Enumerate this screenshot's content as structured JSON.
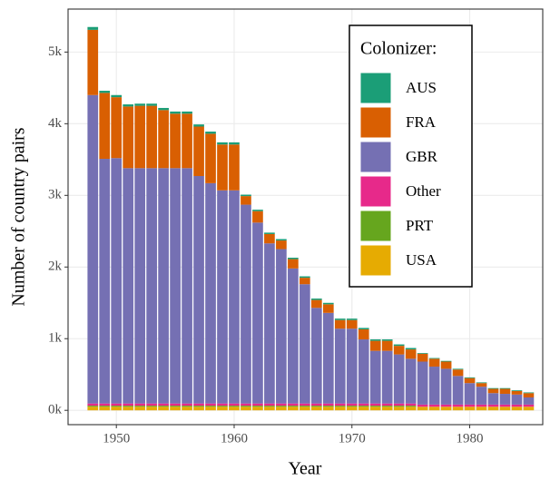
{
  "chart_data": {
    "type": "stacked-bar",
    "x_label": "Year",
    "y_label": "Number of country pairs",
    "legend_title": "Colonizer:",
    "x": [
      1948,
      1949,
      1950,
      1951,
      1952,
      1953,
      1954,
      1955,
      1956,
      1957,
      1958,
      1959,
      1960,
      1961,
      1962,
      1963,
      1964,
      1965,
      1966,
      1967,
      1968,
      1969,
      1970,
      1971,
      1972,
      1973,
      1974,
      1975,
      1976,
      1977,
      1978,
      1979,
      1980,
      1981,
      1982,
      1983,
      1984,
      1985
    ],
    "series": [
      {
        "name": "AUS",
        "color": "#1b9e77",
        "values": [
          40,
          30,
          30,
          30,
          30,
          30,
          30,
          30,
          30,
          30,
          30,
          30,
          30,
          20,
          20,
          20,
          20,
          20,
          20,
          20,
          20,
          20,
          20,
          20,
          20,
          20,
          20,
          20,
          10,
          10,
          10,
          10,
          10,
          10,
          10,
          10,
          10,
          10
        ]
      },
      {
        "name": "FRA",
        "color": "#d95f02",
        "values": [
          910,
          920,
          850,
          860,
          870,
          870,
          810,
          760,
          760,
          690,
          690,
          640,
          640,
          120,
          160,
          130,
          120,
          130,
          90,
          110,
          120,
          120,
          120,
          140,
          140,
          140,
          120,
          130,
          110,
          110,
          100,
          90,
          70,
          50,
          60,
          70,
          50,
          60
        ]
      },
      {
        "name": "GBR",
        "color": "#7570b3",
        "values": [
          4305,
          3415,
          3425,
          3285,
          3285,
          3285,
          3285,
          3285,
          3285,
          3175,
          3075,
          2975,
          2975,
          2775,
          2525,
          2235,
          2155,
          1885,
          1665,
          1335,
          1265,
          1045,
          1045,
          895,
          735,
          735,
          685,
          625,
          600,
          530,
          500,
          400,
          300,
          250,
          160,
          150,
          140,
          100
        ]
      },
      {
        "name": "Other",
        "color": "#e7298a",
        "values": [
          30,
          30,
          30,
          30,
          30,
          30,
          30,
          30,
          30,
          30,
          30,
          30,
          30,
          30,
          30,
          30,
          30,
          30,
          30,
          30,
          30,
          30,
          30,
          30,
          30,
          30,
          30,
          30,
          30,
          30,
          30,
          30,
          30,
          30,
          30,
          30,
          30,
          30
        ]
      },
      {
        "name": "PRT",
        "color": "#66a61e",
        "values": [
          15,
          15,
          15,
          15,
          15,
          15,
          15,
          15,
          15,
          15,
          15,
          15,
          15,
          15,
          15,
          15,
          15,
          15,
          15,
          15,
          15,
          15,
          15,
          15,
          15,
          15,
          15,
          15,
          0,
          0,
          0,
          0,
          0,
          0,
          0,
          0,
          0,
          0
        ]
      },
      {
        "name": "USA",
        "color": "#e6ab02",
        "values": [
          50,
          50,
          50,
          50,
          50,
          50,
          50,
          50,
          50,
          50,
          50,
          50,
          50,
          50,
          50,
          50,
          50,
          50,
          50,
          50,
          50,
          50,
          50,
          50,
          50,
          50,
          50,
          50,
          50,
          50,
          50,
          50,
          50,
          50,
          50,
          50,
          50,
          50
        ]
      }
    ],
    "xlim": [
      1945.9,
      1986.2
    ],
    "xticks": [
      1950,
      1960,
      1970,
      1980
    ],
    "ylim": [
      -200,
      5600
    ],
    "yticks": [
      {
        "value": 0,
        "label": "0k"
      },
      {
        "value": 1000,
        "label": "1k"
      },
      {
        "value": 2000,
        "label": "2k"
      },
      {
        "value": 3000,
        "label": "3k"
      },
      {
        "value": 4000,
        "label": "4k"
      },
      {
        "value": 5000,
        "label": "5k"
      }
    ],
    "grid": true,
    "legend_position": "top-right"
  }
}
